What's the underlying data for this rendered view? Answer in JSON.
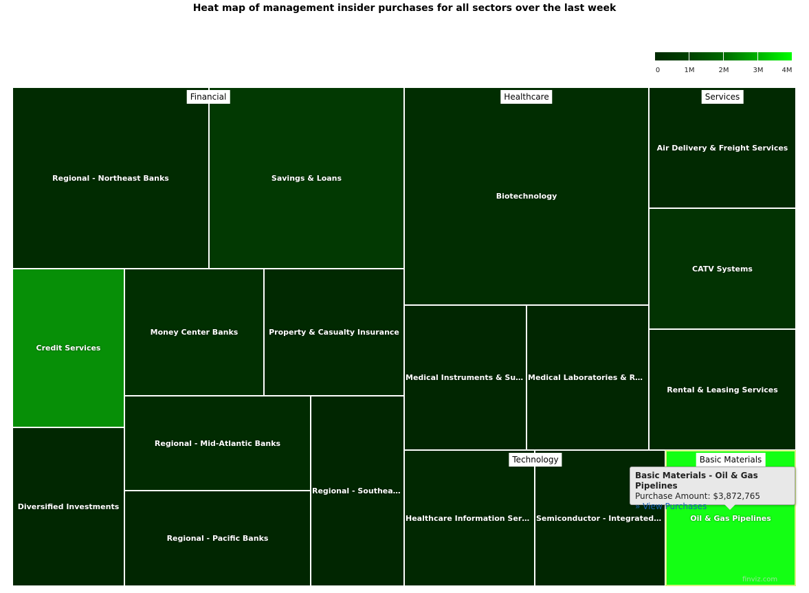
{
  "chart_data": {
    "type": "treemap",
    "title": "Heat map of management insider purchases for all sectors over the last week",
    "legend": {
      "ticks": [
        "0",
        "1M",
        "2M",
        "3M",
        "4M"
      ],
      "min": 0,
      "max": 4000000,
      "colors": [
        "#002900",
        "#004200",
        "#006a00",
        "#00b200",
        "#00ff00"
      ]
    },
    "sectors": [
      {
        "name": "Financial",
        "industries": [
          {
            "name": "Regional - Northeast Banks",
            "color": "#012b01"
          },
          {
            "name": "Savings & Loans",
            "color": "#023902"
          },
          {
            "name": "Credit Services",
            "color": "#078f07"
          },
          {
            "name": "Money Center Banks",
            "color": "#012f01"
          },
          {
            "name": "Property & Casualty Insurance",
            "color": "#012901"
          },
          {
            "name": "Diversified Investments",
            "color": "#012701"
          },
          {
            "name": "Regional - Mid-Atlantic Banks",
            "color": "#012b01"
          },
          {
            "name": "Regional - Southeast Banks",
            "color": "#012601"
          },
          {
            "name": "Regional - Pacific Banks",
            "color": "#012601"
          }
        ]
      },
      {
        "name": "Healthcare",
        "industries": [
          {
            "name": "Biotechnology",
            "color": "#012d01"
          },
          {
            "name": "Medical Instruments & Supplies",
            "color": "#012601"
          },
          {
            "name": "Medical Laboratories & Research",
            "color": "#012601"
          }
        ]
      },
      {
        "name": "Services",
        "industries": [
          {
            "name": "Air Delivery & Freight Services",
            "color": "#012901"
          },
          {
            "name": "CATV Systems",
            "color": "#023302"
          },
          {
            "name": "Rental & Leasing Services",
            "color": "#012801"
          }
        ]
      },
      {
        "name": "Technology",
        "industries": [
          {
            "name": "Healthcare Information Services",
            "color": "#012801"
          },
          {
            "name": "Semiconductor - Integrated Circuits",
            "color": "#012601"
          }
        ]
      },
      {
        "name": "Basic Materials",
        "industries": [
          {
            "name": "Oil & Gas Pipelines",
            "color": "#14ff14",
            "value": 3872765
          }
        ]
      }
    ]
  },
  "tooltip": {
    "title": "Basic Materials - Oil & Gas Pipelines",
    "amount_label": "Purchase Amount:",
    "amount_value": "$3,872,765",
    "link": "» View Purchases"
  },
  "watermark": "finviz.com"
}
